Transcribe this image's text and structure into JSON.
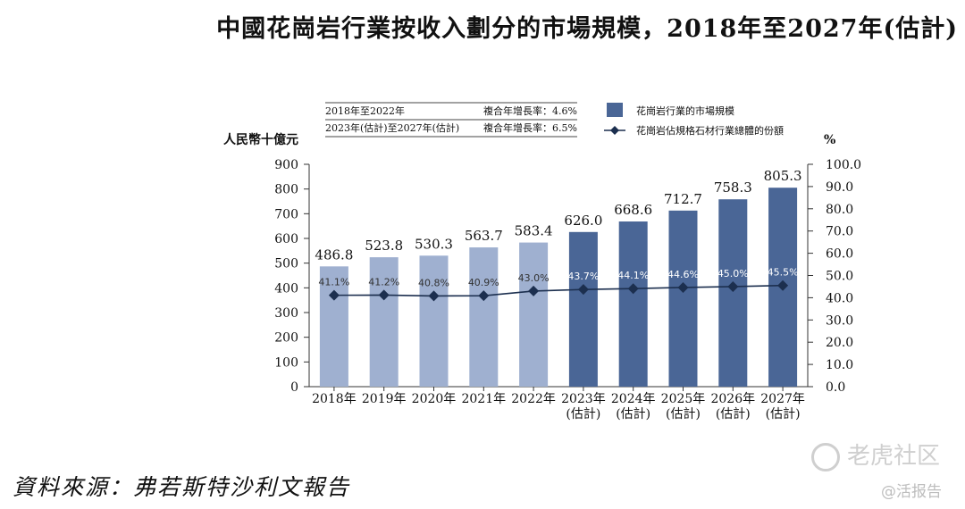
{
  "title": "中國花崗岩行業按收入劃分的市場規模，2018年至2027年(估計)",
  "source": "資料來源：弗若斯特沙利文報告",
  "watermark": {
    "brand": "老虎社区",
    "handle": "@活报告"
  },
  "colors": {
    "bar_actual": "#9fb0d0",
    "bar_forecast": "#4a6696",
    "line": "#1c2f4f",
    "axis": "#333333"
  },
  "chart_data": {
    "type": "bar",
    "categories": [
      "2018年",
      "2019年",
      "2020年",
      "2021年",
      "2022年",
      "2023年",
      "2024年",
      "2025年",
      "2026年",
      "2027年"
    ],
    "category_sublabels": [
      "",
      "",
      "",
      "",
      "",
      "(估計)",
      "(估計)",
      "(估計)",
      "(估計)",
      "(估計)"
    ],
    "series": [
      {
        "name": "花崗岩行業的市場規模",
        "axis": "left",
        "type": "bar",
        "values": [
          486.8,
          523.8,
          530.3,
          563.7,
          583.4,
          626.0,
          668.6,
          712.7,
          758.3,
          805.3
        ],
        "labels": [
          "486.8",
          "523.8",
          "530.3",
          "563.7",
          "583.4",
          "626.0",
          "668.6",
          "712.7",
          "758.3",
          "805.3"
        ]
      },
      {
        "name": "花崗岩佔規格石材行業總體的份額",
        "axis": "right",
        "type": "line",
        "values": [
          41.1,
          41.2,
          40.8,
          40.9,
          43.0,
          43.7,
          44.1,
          44.6,
          45.0,
          45.5
        ],
        "labels": [
          "41.1%",
          "41.2%",
          "40.8%",
          "40.9%",
          "43.0%",
          "43.7%",
          "44.1%",
          "44.6%",
          "45.0%",
          "45.5%"
        ]
      }
    ],
    "forecast_from_index": 5,
    "ylabel": "人民幣十億元",
    "ylim": [
      0,
      900
    ],
    "yticks": [
      "0",
      "100",
      "200",
      "300",
      "400",
      "500",
      "600",
      "700",
      "800",
      "900"
    ],
    "y2label": "%",
    "y2lim": [
      0,
      100
    ],
    "y2ticks": [
      "0.0",
      "10.0",
      "20.0",
      "30.0",
      "40.0",
      "50.0",
      "60.0",
      "70.0",
      "80.0",
      "90.0",
      "100.0"
    ],
    "cagr": [
      {
        "period": "2018年至2022年",
        "label": "複合年增長率：4.6%"
      },
      {
        "period": "2023年(估計)至2027年(估計)",
        "label": "複合年增長率：6.5%"
      }
    ],
    "legend_position": "top-right"
  }
}
